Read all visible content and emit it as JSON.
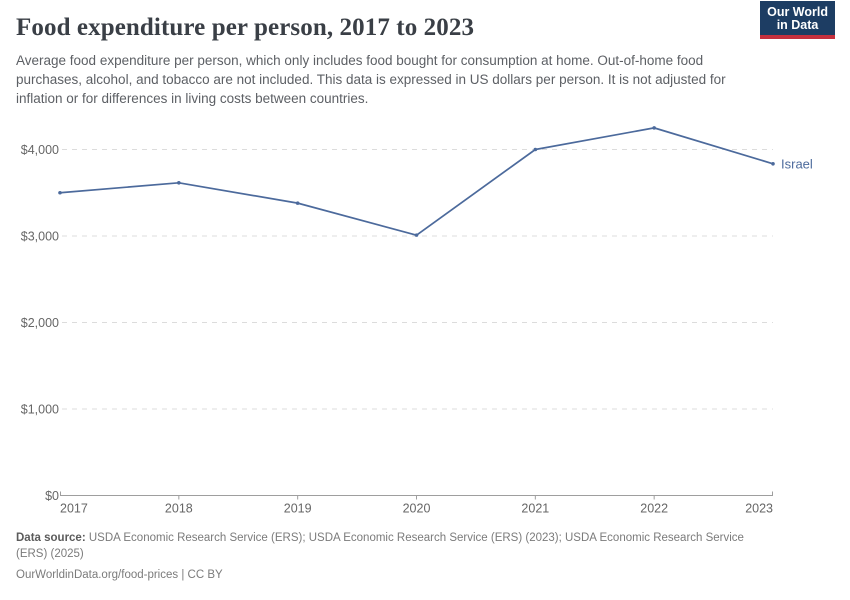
{
  "header": {
    "title": "Food expenditure per person, 2017 to 2023",
    "subtitle": "Average food expenditure per person, which only includes food bought for consumption at home. Out-of-home food purchases, alcohol, and tobacco are not included. This data is expressed in US dollars per person. It is not adjusted for inflation or for differences in living costs between countries.",
    "logo": {
      "line1": "Our World",
      "line2": "in Data",
      "bg_color": "#1d3d63",
      "accent_color": "#c5303e"
    }
  },
  "chart_data": {
    "type": "line",
    "x": [
      2017,
      2018,
      2019,
      2020,
      2021,
      2022,
      2023
    ],
    "series": [
      {
        "name": "Israel",
        "values": [
          3500,
          3615,
          3380,
          3010,
          4000,
          4250,
          3835
        ],
        "color": "#4C6A9C"
      }
    ],
    "title": "Food expenditure per person, 2017 to 2023",
    "xlabel": "",
    "ylabel": "US dollars per person",
    "ylim": [
      0,
      4300
    ],
    "yticks": [
      0,
      1000,
      2000,
      3000,
      4000
    ],
    "ytick_labels": [
      "$0",
      "$1,000",
      "$2,000",
      "$3,000",
      "$4,000"
    ],
    "grid": "horizontal-dashed",
    "legend_position": "end-of-line-label",
    "axis_color": "#9e9e9e",
    "grid_color": "#dcdcdc",
    "tick_label_color": "#666666"
  },
  "footer": {
    "datasource_label": "Data source:",
    "datasource_text": " USDA Economic Research Service (ERS); USDA Economic Research Service (ERS) (2023); USDA Economic Research Service (ERS) (2025)",
    "byline": "OurWorldinData.org/food-prices | CC BY"
  }
}
